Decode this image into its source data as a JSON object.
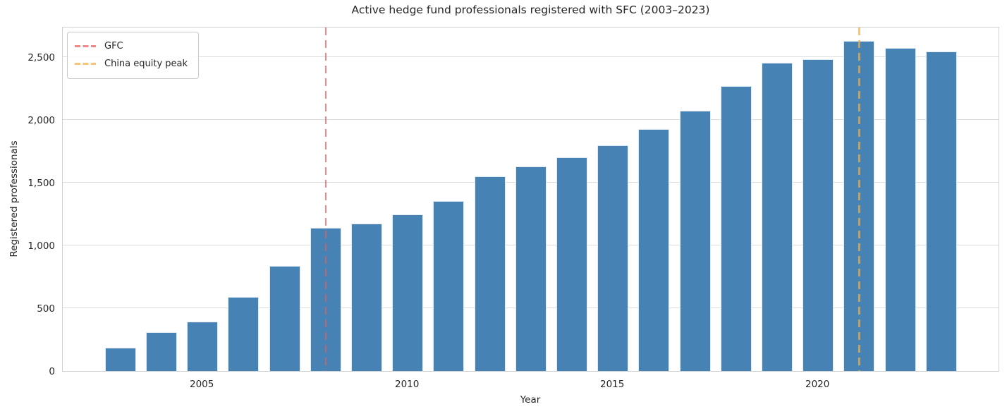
{
  "chart_data": {
    "type": "bar",
    "title": "Active hedge fund professionals registered with SFC (2003–2023)",
    "xlabel": "Year",
    "ylabel": "Registered professionals",
    "categories": [
      2003,
      2004,
      2005,
      2006,
      2007,
      2008,
      2009,
      2010,
      2011,
      2012,
      2013,
      2014,
      2015,
      2016,
      2017,
      2018,
      2019,
      2020,
      2021,
      2022,
      2023
    ],
    "values": [
      185,
      310,
      395,
      590,
      835,
      1140,
      1175,
      1245,
      1355,
      1550,
      1630,
      1700,
      1795,
      1925,
      2070,
      2270,
      2455,
      2480,
      2625,
      2570,
      2545
    ],
    "ylim": [
      0,
      2745
    ],
    "yticks": [
      0,
      500,
      1000,
      1500,
      2000,
      2500
    ],
    "ytick_labels": [
      "0",
      "500",
      "1,000",
      "1,500",
      "2,000",
      "2,500"
    ],
    "xticks": [
      2005,
      2010,
      2015,
      2020
    ],
    "grid": true,
    "legend_position": "upper-left",
    "bar_color": "#4682b4",
    "bar_edge_color": "#e0eaf3",
    "grid_color": "#dcdcdc",
    "spine_color": "#d0d0d0",
    "text_color": "#262626",
    "vlines": [
      {
        "x": 2008,
        "label": "GFC",
        "color": "#e85c5c",
        "opacity": 0.72
      },
      {
        "x": 2021,
        "label": "China equity peak",
        "color": "#f2ae45",
        "opacity": 0.72
      }
    ]
  }
}
